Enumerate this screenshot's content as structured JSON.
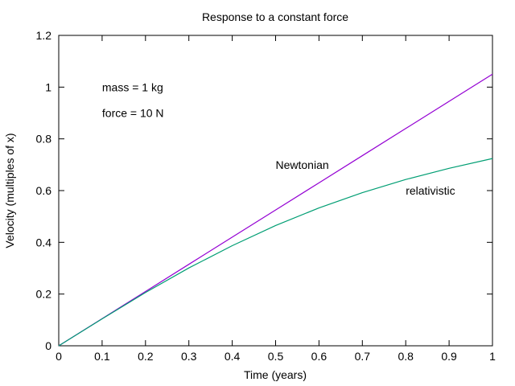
{
  "chart_data": {
    "type": "line",
    "title": "Response to a constant force",
    "xlabel": "Time (years)",
    "ylabel": "Velocity (multiples of x)",
    "xlim": [
      0,
      1
    ],
    "ylim": [
      0,
      1.2
    ],
    "grid": false,
    "legend": "none",
    "x_ticks": [
      "0",
      "0.1",
      "0.2",
      "0.3",
      "0.4",
      "0.5",
      "0.6",
      "0.7",
      "0.8",
      "0.9",
      "1"
    ],
    "y_ticks": [
      "0",
      "0.2",
      "0.4",
      "0.6",
      "0.8",
      "1",
      "1.2"
    ],
    "x": [
      0,
      0.1,
      0.2,
      0.3,
      0.4,
      0.5,
      0.6,
      0.7,
      0.8,
      0.9,
      1.0
    ],
    "series": [
      {
        "name": "Newtonian",
        "color": "#9400d3",
        "values": [
          0,
          0.105,
          0.21,
          0.315,
          0.42,
          0.525,
          0.63,
          0.735,
          0.84,
          0.945,
          1.05
        ]
      },
      {
        "name": "relativistic",
        "color": "#009e73",
        "values": [
          0,
          0.104,
          0.206,
          0.301,
          0.387,
          0.465,
          0.533,
          0.592,
          0.643,
          0.686,
          0.724
        ]
      }
    ],
    "annotations": [
      {
        "text": "mass = 1 kg",
        "x": 0.1,
        "y": 1.0
      },
      {
        "text": "force = 10 N",
        "x": 0.1,
        "y": 0.9
      },
      {
        "text": "Newtonian",
        "x": 0.5,
        "y": 0.7
      },
      {
        "text": "relativistic",
        "x": 0.8,
        "y": 0.6
      }
    ]
  }
}
